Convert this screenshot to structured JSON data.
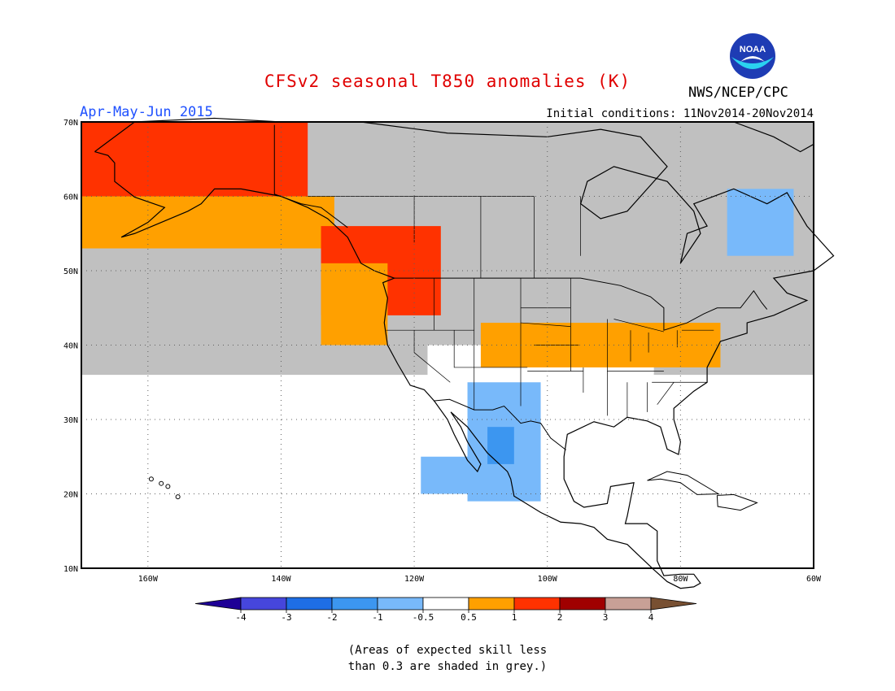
{
  "title": "CFSv2 seasonal T850 anomalies (K)",
  "season": "Apr-May-Jun 2015",
  "initial_conditions": "Initial conditions: 11Nov2014-20Nov2014",
  "organization": "NWS/NCEP/CPC",
  "logo_text": "NOAA",
  "colors": {
    "title": "#e00000",
    "season": "#1e50ff",
    "grey_noskill": "#c0c0c0",
    "land_outline": "#000000",
    "ocean": "#ffffff"
  },
  "map": {
    "lon_range": [
      -170,
      -60
    ],
    "lat_range": [
      10,
      70
    ],
    "lon_ticks": [
      {
        "value": -160,
        "label": "160W"
      },
      {
        "value": -140,
        "label": "140W"
      },
      {
        "value": -120,
        "label": "120W"
      },
      {
        "value": -100,
        "label": "100W"
      },
      {
        "value": -80,
        "label": "80W"
      },
      {
        "value": -60,
        "label": "60W"
      }
    ],
    "lat_ticks": [
      {
        "value": 70,
        "label": "70N"
      },
      {
        "value": 60,
        "label": "60N"
      },
      {
        "value": 50,
        "label": "50N"
      },
      {
        "value": 40,
        "label": "40N"
      },
      {
        "value": 30,
        "label": "30N"
      },
      {
        "value": 20,
        "label": "20N"
      },
      {
        "value": 10,
        "label": "10N"
      }
    ],
    "anomaly_regions": [
      {
        "name": "grey",
        "bin": "low skill",
        "lon": [
          -170,
          -60
        ],
        "lat": [
          10,
          70
        ]
      },
      {
        "name": "white-pacific",
        "bin": "-0.5 to 0.5",
        "lon": [
          -170,
          -60
        ],
        "lat": [
          10,
          36
        ]
      },
      {
        "name": "white-us",
        "bin": "-0.5 to 0.5",
        "lon": [
          -118,
          -84
        ],
        "lat": [
          24,
          40
        ]
      },
      {
        "name": "alaska-red",
        "bin": "1 to 2",
        "lon": [
          -170,
          -136
        ],
        "lat": [
          59,
          70
        ]
      },
      {
        "name": "alaska-orange",
        "bin": "0.5 to 1",
        "lon": [
          -170,
          -132
        ],
        "lat": [
          53,
          60
        ]
      },
      {
        "name": "bc-red",
        "bin": "1 to 2",
        "lon": [
          -134,
          -116
        ],
        "lat": [
          44,
          56
        ]
      },
      {
        "name": "bc-orange",
        "bin": "0.5 to 1",
        "lon": [
          -134,
          -124
        ],
        "lat": [
          40,
          51
        ]
      },
      {
        "name": "ohio-orange",
        "bin": "0.5 to 1",
        "lon": [
          -110,
          -74
        ],
        "lat": [
          37,
          43
        ]
      },
      {
        "name": "sw-blue",
        "bin": "-1 to -0.5",
        "lon": [
          -112,
          -101
        ],
        "lat": [
          19,
          35
        ]
      },
      {
        "name": "mex-blue",
        "bin": "-1 to -0.5",
        "lon": [
          -119,
          -109
        ],
        "lat": [
          20,
          25
        ]
      },
      {
        "name": "mex-darkblue",
        "bin": "-2 to -1",
        "lon": [
          -109,
          -105
        ],
        "lat": [
          24,
          29
        ]
      },
      {
        "name": "quebec-blue",
        "bin": "-1 to -0.5",
        "lon": [
          -73,
          -63
        ],
        "lat": [
          52,
          61
        ]
      }
    ]
  },
  "colorbar": {
    "labels": [
      "-4",
      "-3",
      "-2",
      "-1",
      "-0.5",
      "0.5",
      "1",
      "2",
      "3",
      "4"
    ],
    "colors": [
      "#1e0096",
      "#4646dc",
      "#1e6ee6",
      "#3c96f0",
      "#78b9fa",
      "#ffffff",
      "#ffa000",
      "#ff3200",
      "#a00000",
      "#c8a096",
      "#785032"
    ]
  },
  "note_line1": "(Areas of expected skill less",
  "note_line2": "than 0.3 are shaded in grey.)"
}
